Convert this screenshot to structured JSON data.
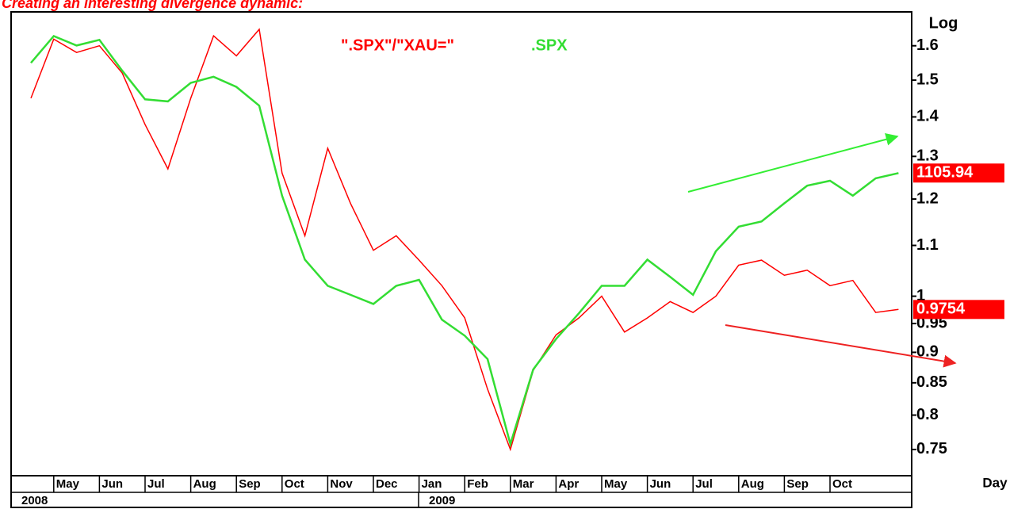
{
  "chart_data": {
    "type": "line",
    "title": "Creating an interesting divergence dynamic:",
    "y_axis_label": "Log",
    "x_axis_label": "Day",
    "log_scale": true,
    "categories": [
      null,
      "May",
      null,
      "Jun",
      null,
      "Jul",
      null,
      "Aug",
      null,
      "Sep",
      null,
      "Oct",
      null,
      "Nov",
      null,
      "Dec",
      null,
      "Jan",
      null,
      "Feb",
      null,
      "Mar",
      null,
      "Apr",
      null,
      "May",
      null,
      "Jun",
      null,
      "Jul",
      null,
      "Aug",
      null,
      "Sep",
      null,
      "Oct",
      null,
      null,
      null
    ],
    "years": [
      "2008",
      "2009"
    ],
    "ylim": [
      0.714,
      1.705
    ],
    "yticks": [
      0.75,
      0.8,
      0.85,
      0.9,
      0.95,
      1,
      1.1,
      1.2,
      1.3,
      1.4,
      1.5,
      1.6
    ],
    "y2lim": [
      626.7,
      1496.5
    ],
    "series": [
      {
        "name": "\".SPX\"/\"XAU=\"",
        "color": "#ff0000",
        "values": [
          1.45,
          1.62,
          1.58,
          1.6,
          1.52,
          1.38,
          1.27,
          1.45,
          1.63,
          1.57,
          1.65,
          1.26,
          1.12,
          1.32,
          1.19,
          1.09,
          1.12,
          1.07,
          1.02,
          0.96,
          0.84,
          0.75,
          0.87,
          0.93,
          0.96,
          1.0,
          0.935,
          0.96,
          0.99,
          0.97,
          1.0,
          1.06,
          1.07,
          1.04,
          1.05,
          1.02,
          1.03,
          0.97,
          0.9754
        ]
      },
      {
        "name": ".SPX",
        "color": "#33dd33",
        "axis": "y2",
        "values": [
          1360,
          1430,
          1405,
          1420,
          1340,
          1270,
          1265,
          1310,
          1325,
          1300,
          1255,
          1060,
          940,
          895,
          880,
          865,
          895,
          905,
          840,
          815,
          780,
          665,
          765,
          810,
          850,
          895,
          895,
          940,
          910,
          880,
          955,
          1000,
          1010,
          1045,
          1080,
          1090,
          1060,
          1095,
          1105.94
        ]
      }
    ]
  }
}
